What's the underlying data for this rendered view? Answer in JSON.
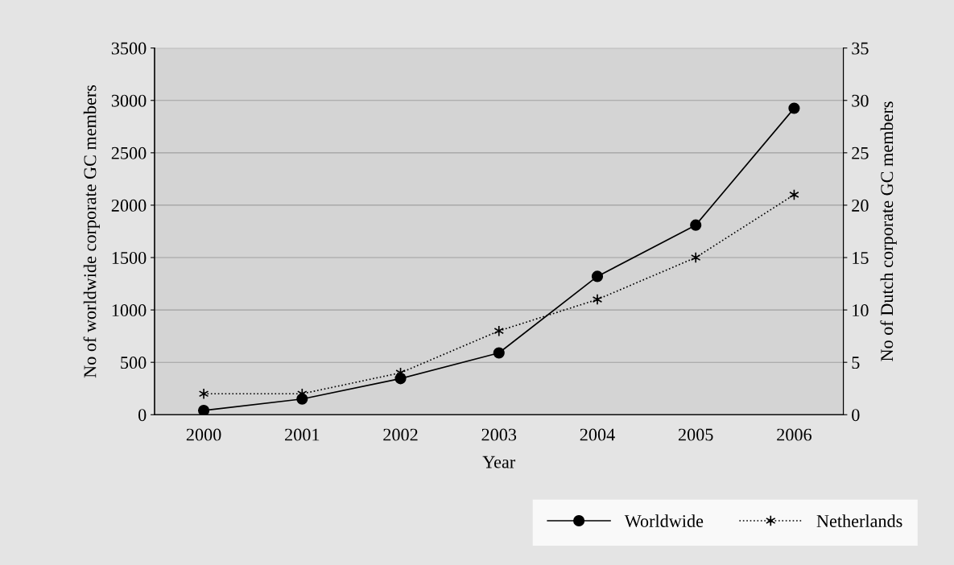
{
  "chart_data": {
    "type": "line",
    "xlabel": "Year",
    "ylabel": "No of worldwide corporate GC members",
    "y2label": "No of Dutch corporate GC members",
    "categories": [
      "2000",
      "2001",
      "2002",
      "2003",
      "2004",
      "2005",
      "2006"
    ],
    "series": [
      {
        "name": "Worldwide",
        "color": "#000000",
        "values": [
          40,
          150,
          345,
          590,
          1320,
          1810,
          2925
        ],
        "marker": "circle",
        "line_style": "solid"
      },
      {
        "name": "Netherlands",
        "color": "#000000",
        "values": [
          2,
          2,
          4,
          8,
          11,
          15,
          21
        ],
        "axis": "y2",
        "marker": "cross",
        "line_style": "dotted"
      }
    ],
    "ylim": [
      0,
      3500
    ],
    "yticks": [
      0,
      500,
      1000,
      1500,
      2000,
      2500,
      3000,
      3500
    ],
    "y2lim": [
      0,
      35
    ],
    "y2ticks": [
      0,
      5,
      10,
      15,
      20,
      25,
      30,
      35
    ],
    "grid": "y",
    "legend": "bottom right"
  }
}
